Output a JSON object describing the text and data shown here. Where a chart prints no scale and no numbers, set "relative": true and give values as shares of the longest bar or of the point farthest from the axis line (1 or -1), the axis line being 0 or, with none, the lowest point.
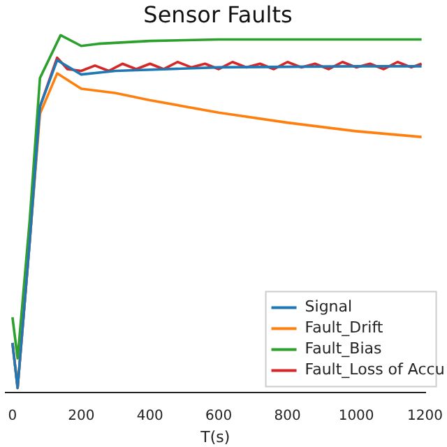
{
  "chart_data": {
    "type": "line",
    "title": "Sensor Faults",
    "xlabel": "T(s)",
    "relative": true,
    "xlim": [
      -20,
      1200
    ],
    "xticks": [
      0,
      200,
      400,
      600,
      800,
      1000,
      1200
    ],
    "legend": "bottom right",
    "grid": false,
    "marker": "none",
    "line_style": "solid",
    "series": [
      {
        "name": "Signal",
        "color": "#1f77b4",
        "x": [
          0,
          15,
          50,
          80,
          130,
          200,
          300,
          600,
          1000,
          1190
        ],
        "values": [
          0.138,
          0.012,
          0.42,
          0.8,
          0.93,
          0.89,
          0.9,
          0.91,
          0.913,
          0.913
        ]
      },
      {
        "name": "Fault_Drift",
        "color": "#ff7f0e",
        "x": [
          0,
          15,
          50,
          80,
          130,
          200,
          300,
          400,
          600,
          800,
          1000,
          1190
        ],
        "values": [
          0.138,
          0.012,
          0.42,
          0.78,
          0.893,
          0.85,
          0.838,
          0.818,
          0.783,
          0.755,
          0.731,
          0.715
        ]
      },
      {
        "name": "Fault_Bias",
        "color": "#2ca02c",
        "x": [
          0,
          15,
          50,
          80,
          140,
          200,
          250,
          400,
          600,
          1000,
          1190
        ],
        "values": [
          0.21,
          0.095,
          0.48,
          0.88,
          1.0,
          0.97,
          0.976,
          0.984,
          0.988,
          0.988,
          0.988
        ]
      },
      {
        "name": "Fault_Loss of Accu",
        "color": "#d62728",
        "x": [
          0,
          15,
          50,
          80,
          130,
          160,
          200,
          240,
          280,
          320,
          360,
          400,
          440,
          480,
          520,
          560,
          600,
          640,
          680,
          720,
          760,
          800,
          840,
          880,
          920,
          960,
          1000,
          1040,
          1080,
          1120,
          1160,
          1190
        ],
        "values": [
          0.138,
          0.012,
          0.42,
          0.8,
          0.937,
          0.905,
          0.9,
          0.915,
          0.9,
          0.92,
          0.905,
          0.92,
          0.905,
          0.925,
          0.91,
          0.92,
          0.905,
          0.925,
          0.91,
          0.92,
          0.905,
          0.925,
          0.91,
          0.92,
          0.905,
          0.925,
          0.91,
          0.92,
          0.905,
          0.925,
          0.91,
          0.92
        ]
      }
    ]
  }
}
